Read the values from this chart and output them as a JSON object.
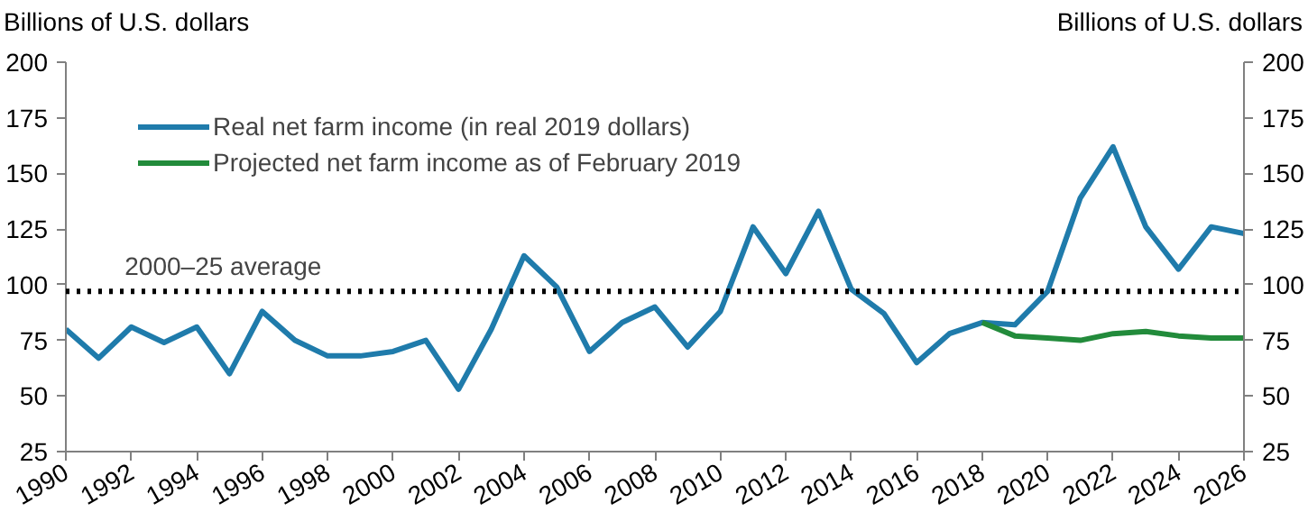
{
  "chart_data": {
    "type": "line",
    "ylabel": "Billions of U.S. dollars",
    "y2label": "Billions of U.S. dollars",
    "x": [
      1990,
      1991,
      1992,
      1993,
      1994,
      1995,
      1996,
      1997,
      1998,
      1999,
      2000,
      2001,
      2002,
      2003,
      2004,
      2005,
      2006,
      2007,
      2008,
      2009,
      2010,
      2011,
      2012,
      2013,
      2014,
      2015,
      2016,
      2017,
      2018,
      2019,
      2020,
      2021,
      2022,
      2023,
      2024,
      2025,
      2026
    ],
    "series": [
      {
        "name": "Real net farm income (in real 2019 dollars)",
        "color": "#1f7bab",
        "values": [
          80,
          67,
          81,
          74,
          81,
          60,
          88,
          75,
          68,
          68,
          70,
          75,
          53,
          80,
          113,
          99,
          70,
          83,
          90,
          72,
          88,
          126,
          105,
          133,
          98,
          87,
          65,
          78,
          83,
          82,
          97,
          139,
          162,
          126,
          107,
          126,
          123
        ]
      },
      {
        "name": "Projected net farm income as of February 2019",
        "color": "#228b3b",
        "x": [
          2018,
          2019,
          2020,
          2021,
          2022,
          2023,
          2024,
          2025,
          2026
        ],
        "values": [
          83,
          77,
          76,
          75,
          78,
          79,
          77,
          76,
          76
        ]
      }
    ],
    "xlim": [
      1990,
      2026
    ],
    "xticks": [
      1990,
      1992,
      1994,
      1996,
      1998,
      2000,
      2002,
      2004,
      2006,
      2008,
      2010,
      2012,
      2014,
      2016,
      2018,
      2020,
      2022,
      2024,
      2026
    ],
    "ylim": [
      25,
      200
    ],
    "yticks": [
      25,
      50,
      75,
      100,
      125,
      150,
      175,
      200
    ],
    "y2lim": [
      25,
      200
    ],
    "y2ticks": [
      25,
      50,
      75,
      100,
      125,
      150,
      175,
      200
    ],
    "ref_lines": [
      {
        "axis": "y",
        "value": 97,
        "label": "2000–25 average",
        "color": "#000000",
        "line_style": "dotted"
      }
    ],
    "grid": false,
    "legend": "top left",
    "line_style": "solid",
    "marker": "none"
  }
}
